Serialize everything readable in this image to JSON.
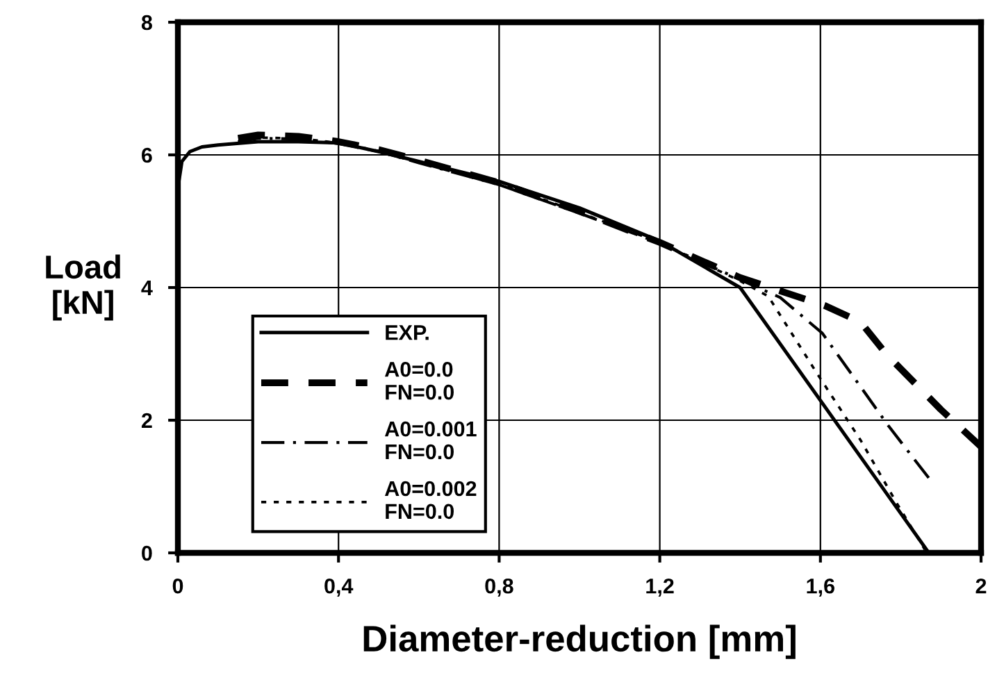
{
  "chart_data": {
    "type": "line",
    "xlabel": "Diameter-reduction [mm]",
    "ylabel": "Load\n[kN]",
    "xlim": [
      0,
      2
    ],
    "ylim": [
      0,
      8
    ],
    "xticks": [
      0,
      {
        "value": 0.4,
        "label": "0,4"
      },
      {
        "value": 0.8,
        "label": "0,8"
      },
      {
        "value": 1.2,
        "label": "1,2"
      },
      {
        "value": 1.6,
        "label": "1,6"
      },
      2
    ],
    "yticks": [
      0,
      2,
      4,
      6,
      8
    ],
    "grid": true,
    "legend": "bottom left",
    "series": [
      {
        "name": "EXP.",
        "color": "#000000",
        "line_style": "solid",
        "x": [
          0,
          0.01,
          0.03,
          0.06,
          0.1,
          0.2,
          0.3,
          0.4,
          0.5,
          0.6,
          0.8,
          1.0,
          1.2,
          1.4,
          1.87
        ],
        "values": [
          5.5,
          5.9,
          6.05,
          6.12,
          6.15,
          6.2,
          6.2,
          6.18,
          6.05,
          5.9,
          5.6,
          5.2,
          4.7,
          4.0,
          0
        ]
      },
      {
        "name": "A0=0.0\nFN=0.0",
        "color": "#000000",
        "line_style": "dashed",
        "x": [
          0.15,
          0.2,
          0.3,
          0.4,
          0.5,
          0.6,
          0.8,
          1.0,
          1.2,
          1.4,
          1.5,
          1.61,
          1.7,
          1.765,
          1.9,
          2.0
        ],
        "values": [
          6.25,
          6.3,
          6.28,
          6.2,
          6.08,
          5.92,
          5.58,
          5.15,
          4.68,
          4.15,
          3.95,
          3.73,
          3.48,
          2.99,
          2.16,
          1.6
        ]
      },
      {
        "name": "A0=0.001\nFN=0.0",
        "color": "#000000",
        "line_style": "dashdot",
        "x": [
          0.15,
          0.2,
          0.3,
          0.4,
          0.5,
          0.6,
          0.8,
          1.0,
          1.2,
          1.4,
          1.5,
          1.605,
          1.77,
          1.88
        ],
        "values": [
          6.2,
          6.25,
          6.24,
          6.17,
          6.05,
          5.88,
          5.55,
          5.12,
          4.67,
          4.12,
          3.85,
          3.31,
          1.91,
          1.05
        ]
      },
      {
        "name": "A0=0.002\nFN=0.0",
        "color": "#000000",
        "line_style": "dotted",
        "x": [
          0.15,
          0.2,
          0.3,
          0.4,
          0.5,
          0.6,
          0.8,
          1.0,
          1.2,
          1.4,
          1.47,
          1.59,
          1.7,
          1.79,
          1.86
        ],
        "values": [
          6.2,
          6.26,
          6.25,
          6.18,
          6.06,
          5.9,
          5.57,
          5.13,
          4.68,
          4.1,
          3.87,
          2.72,
          1.7,
          0.75,
          0.05
        ]
      }
    ]
  }
}
